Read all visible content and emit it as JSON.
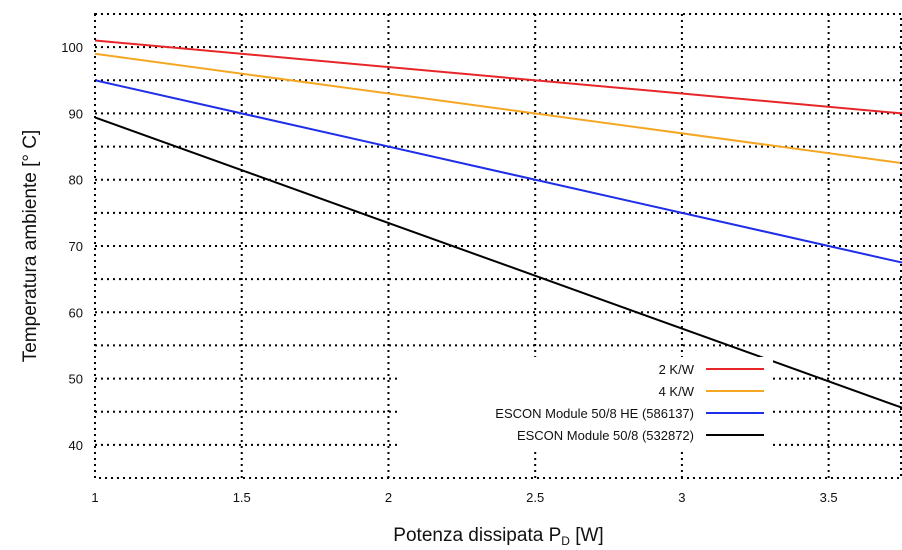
{
  "chart_data": {
    "type": "line",
    "title": "",
    "xlabel": "Potenza dissipata P",
    "xlabel_sub": "D",
    "xlabel_unit": " [W]",
    "ylabel": "Temperatura ambiente [° C]",
    "xlim": [
      1,
      3.75
    ],
    "ylim": [
      35,
      105
    ],
    "x_ticks": [
      1,
      1.5,
      2,
      2.5,
      3,
      3.5
    ],
    "x_tick_labels": [
      "1",
      "1.5",
      "2",
      "2.5",
      "3",
      "3.5"
    ],
    "y_ticks": [
      40,
      50,
      60,
      70,
      80,
      90,
      100
    ],
    "y_tick_labels": [
      "40",
      "50",
      "60",
      "70",
      "80",
      "90",
      "100"
    ],
    "grid": true,
    "legend_position": "bottom-right",
    "series": [
      {
        "name": "2 K/W",
        "color": "#e8262a",
        "x": [
          1,
          3.75
        ],
        "y": [
          101,
          90
        ]
      },
      {
        "name": "4 K/W",
        "color": "#f5a623",
        "x": [
          1,
          3.75
        ],
        "y": [
          99,
          82.5
        ]
      },
      {
        "name": "ESCON Module 50/8 HE (586137)",
        "color": "#1f2ee8",
        "x": [
          1,
          3.75
        ],
        "y": [
          95,
          67.5
        ]
      },
      {
        "name": "ESCON Module 50/8 (532872)",
        "color": "#000000",
        "x": [
          1,
          3.75
        ],
        "y": [
          89.4,
          45.6
        ]
      }
    ]
  }
}
